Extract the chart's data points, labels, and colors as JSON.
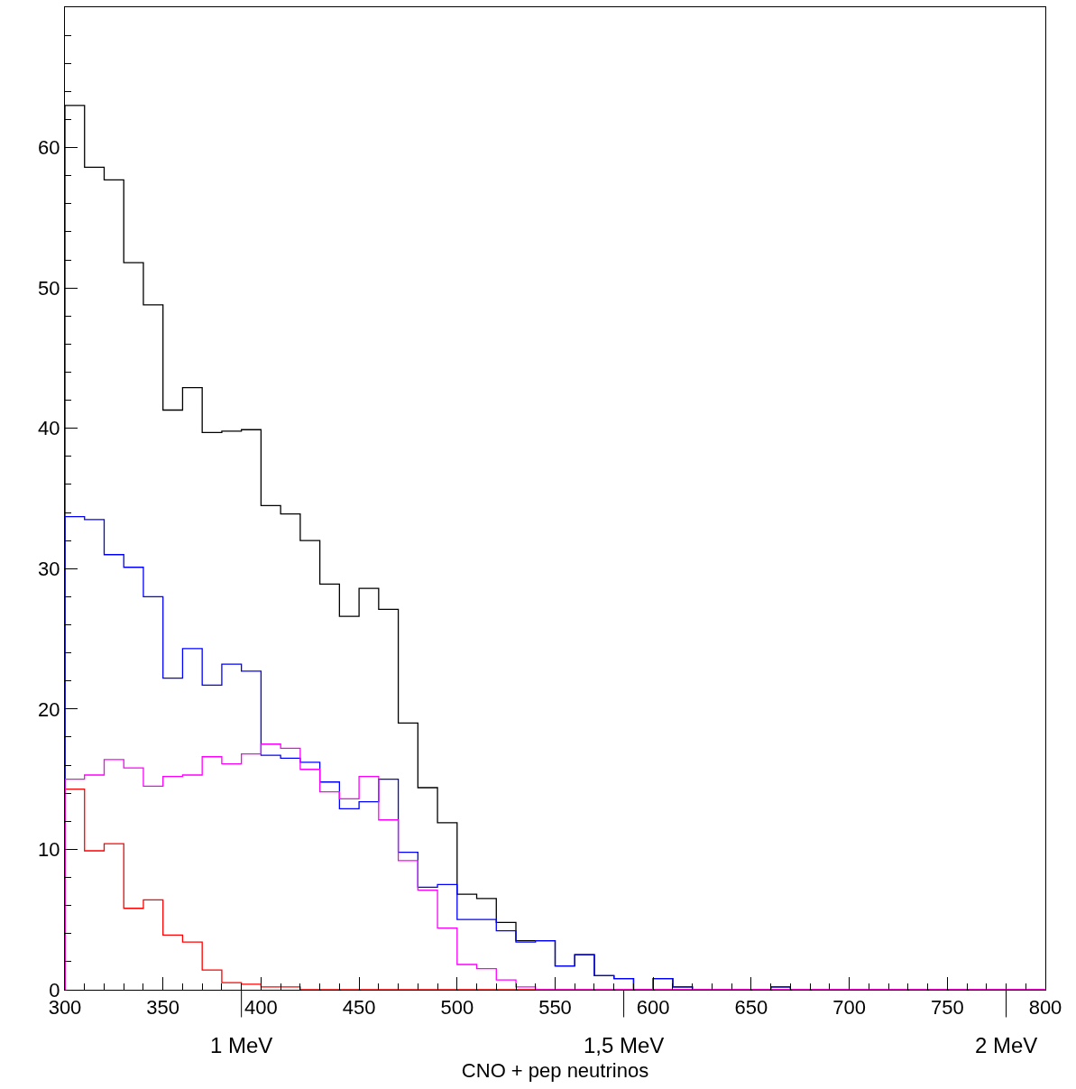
{
  "chart_data": {
    "type": "histogram",
    "xlabel": "CNO + pep neutrinos",
    "bins": [
      300,
      310,
      320,
      330,
      340,
      350,
      360,
      370,
      380,
      390,
      400,
      410,
      420,
      430,
      440,
      450,
      460,
      470,
      480,
      490,
      500,
      510,
      520,
      530,
      540,
      550,
      560,
      570,
      580,
      590,
      600,
      610,
      620,
      630,
      640,
      650,
      660,
      670,
      680,
      690,
      700,
      710,
      720,
      730,
      740,
      750,
      760,
      770,
      780,
      790,
      800
    ],
    "series": [
      {
        "color": "#000000",
        "values": [
          63,
          58.6,
          57.7,
          51.8,
          48.8,
          41.3,
          42.9,
          39.7,
          39.8,
          39.9,
          34.5,
          33.9,
          32.0,
          28.9,
          26.6,
          28.6,
          27.1,
          19.0,
          14.4,
          11.9,
          6.8,
          6.5,
          4.8,
          3.5,
          3.5,
          1.7,
          2.5,
          1.0,
          0.8,
          0,
          0.8,
          0.2,
          0,
          0,
          0,
          0,
          0.2,
          0,
          0,
          0,
          0,
          0,
          0,
          0,
          0,
          0,
          0,
          0,
          0,
          0
        ]
      },
      {
        "color": "#0000ff",
        "values": [
          33.7,
          33.5,
          31.0,
          30.1,
          28.0,
          22.2,
          24.3,
          21.7,
          23.2,
          22.7,
          16.7,
          16.5,
          16.2,
          14.8,
          12.9,
          13.4,
          15.0,
          9.8,
          7.3,
          7.5,
          5.0,
          5.0,
          4.2,
          3.4,
          3.5,
          1.7,
          2.5,
          1.0,
          0.8,
          0,
          0.8,
          0.2,
          0,
          0,
          0,
          0,
          0.2,
          0,
          0,
          0,
          0,
          0,
          0,
          0,
          0,
          0,
          0,
          0,
          0,
          0
        ]
      },
      {
        "color": "#ff0000",
        "values": [
          14.3,
          9.9,
          10.4,
          5.8,
          6.4,
          3.9,
          3.4,
          1.4,
          0.5,
          0.4,
          0.2,
          0.2,
          0,
          0,
          0,
          0,
          0,
          0,
          0,
          0,
          0,
          0,
          0,
          0,
          0,
          0,
          0,
          0,
          0,
          0,
          0,
          0,
          0,
          0,
          0,
          0,
          0,
          0,
          0,
          0,
          0,
          0,
          0,
          0,
          0,
          0,
          0,
          0,
          0,
          0
        ]
      },
      {
        "color": "#ff00ff",
        "values": [
          15.0,
          15.3,
          16.4,
          15.8,
          14.5,
          15.2,
          15.3,
          16.6,
          16.1,
          16.8,
          17.5,
          17.2,
          15.7,
          14.1,
          13.6,
          15.2,
          12.1,
          9.2,
          7.1,
          4.4,
          1.8,
          1.5,
          0.7,
          0.2,
          0,
          0,
          0,
          0,
          0,
          0,
          0,
          0,
          0,
          0,
          0,
          0,
          0,
          0,
          0,
          0,
          0,
          0,
          0,
          0,
          0,
          0,
          0,
          0,
          0,
          0
        ]
      }
    ],
    "xlim": [
      300,
      800
    ],
    "xticks": [
      300,
      350,
      400,
      450,
      500,
      550,
      600,
      650,
      700,
      750,
      800
    ],
    "ylim": [
      0,
      70
    ],
    "yticks": [
      0,
      10,
      20,
      30,
      40,
      50,
      60
    ],
    "annotations": [
      "1 MeV",
      "1,5 MeV",
      "2 MeV"
    ]
  }
}
